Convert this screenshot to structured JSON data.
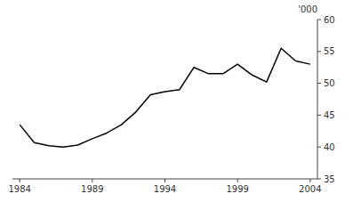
{
  "chart_data": {
    "type": "line",
    "x": [
      1984,
      1985,
      1986,
      1987,
      1988,
      1989,
      1990,
      1991,
      1992,
      1993,
      1994,
      1995,
      1996,
      1997,
      1998,
      1999,
      2000,
      2001,
      2002,
      2003,
      2004
    ],
    "values": [
      43.5,
      40.7,
      40.2,
      40.0,
      40.3,
      41.3,
      42.2,
      43.5,
      45.5,
      48.2,
      48.7,
      49.0,
      52.5,
      51.5,
      51.5,
      53.0,
      51.3,
      50.2,
      55.5,
      53.5,
      53.0
    ],
    "color": "#000000",
    "ylabel": "'000",
    "xlim": [
      1983.5,
      2004.5
    ],
    "ylim": [
      35,
      60
    ],
    "xticks": [
      1984,
      1989,
      1994,
      1999,
      2004
    ],
    "yticks": [
      35,
      40,
      45,
      50,
      55,
      60
    ],
    "grid": false
  }
}
